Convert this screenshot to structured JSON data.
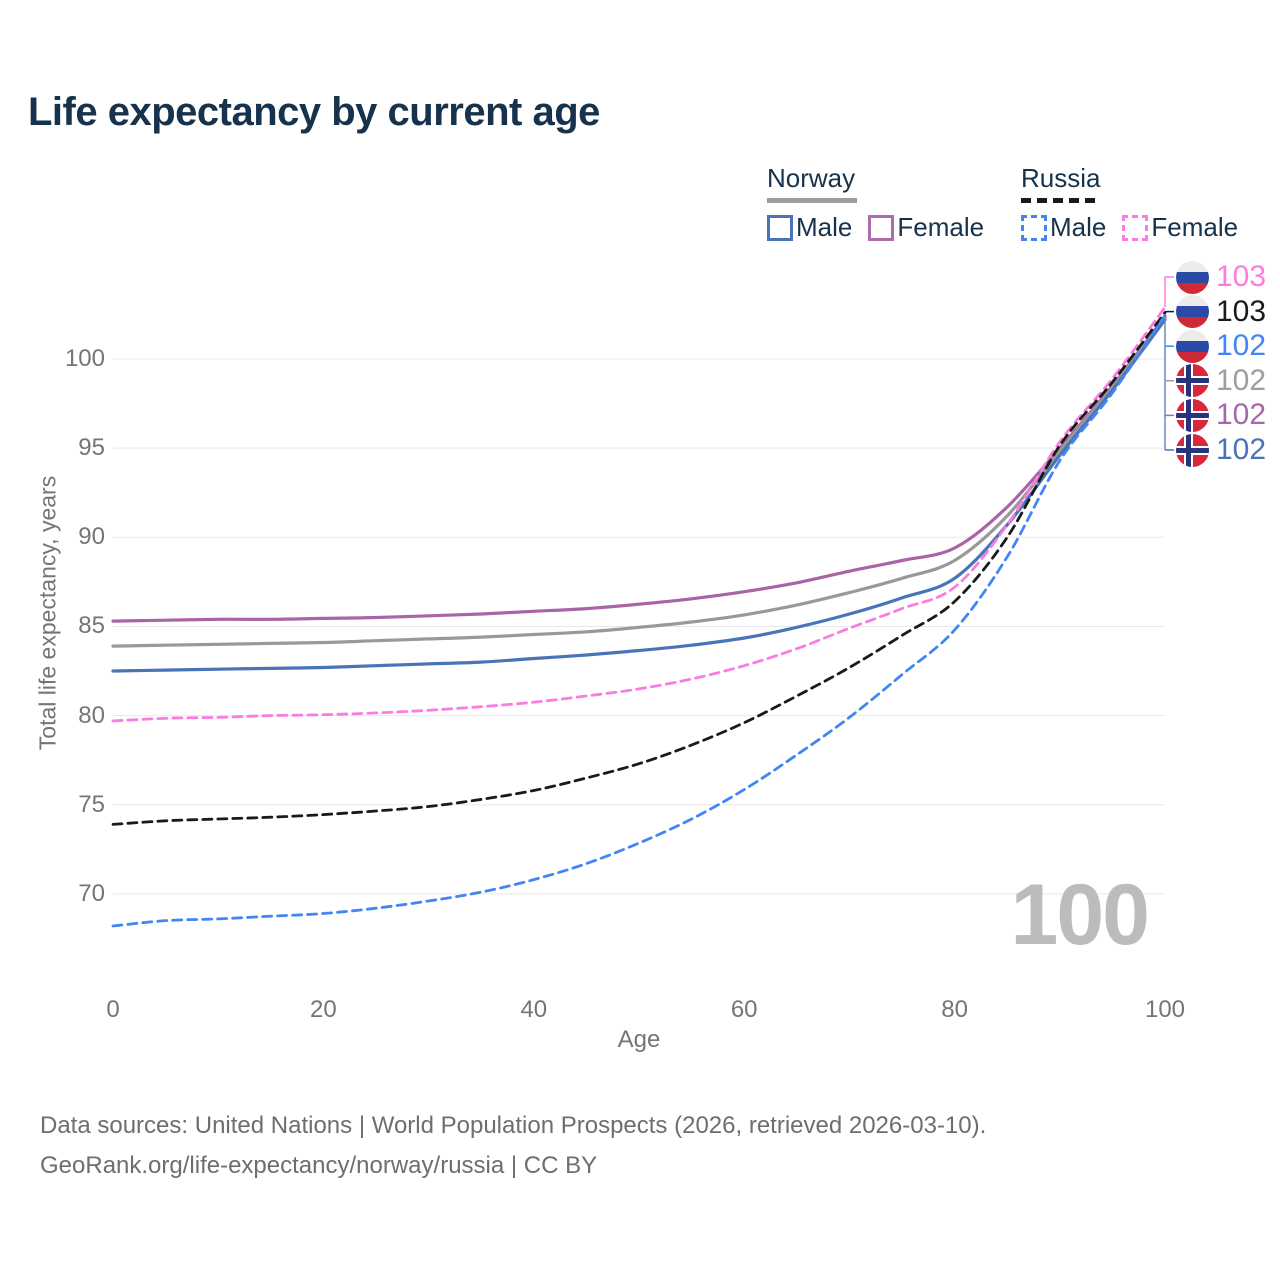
{
  "title": "Life expectancy by current age",
  "legend": {
    "norway": {
      "label": "Norway",
      "items": [
        {
          "label": "Male"
        },
        {
          "label": "Female"
        }
      ]
    },
    "russia": {
      "label": "Russia",
      "items": [
        {
          "label": "Male"
        },
        {
          "label": "Female"
        }
      ]
    }
  },
  "footer": {
    "line1": "Data sources: United Nations | World Population Prospects (2026, retrieved 2026-03-10).",
    "line2": "GeoRank.org/life-expectancy/norway/russia | CC BY"
  },
  "chart_data": {
    "type": "line",
    "title": "Life expectancy by current age",
    "xlabel": "Age",
    "ylabel": "Total life expectancy, years",
    "x": [
      0,
      5,
      10,
      15,
      20,
      25,
      30,
      35,
      40,
      45,
      50,
      55,
      60,
      65,
      70,
      75,
      80,
      85,
      90,
      95,
      100
    ],
    "xticks": [
      0,
      20,
      40,
      60,
      80,
      100
    ],
    "yticks": [
      70,
      75,
      80,
      85,
      90,
      95,
      100
    ],
    "xlim": [
      0,
      100
    ],
    "ylim": [
      66,
      104
    ],
    "grid": true,
    "legend_position": "top-right",
    "age_indicator": "100",
    "grid_color": "#e8e8e8",
    "axis_text_color": "#757575",
    "series": [
      {
        "name": "Norway Female",
        "country": "Norway",
        "sex": "Female",
        "style": "solid",
        "color": "#a963a7",
        "values": [
          85.3,
          85.35,
          85.4,
          85.4,
          85.45,
          85.5,
          85.6,
          85.7,
          85.85,
          86.0,
          86.25,
          86.55,
          86.95,
          87.45,
          88.1,
          88.7,
          89.4,
          91.7,
          95.0,
          98.5,
          102.4
        ]
      },
      {
        "name": "Norway",
        "country": "Norway",
        "sex": "Both",
        "style": "solid",
        "color": "#999999",
        "values": [
          83.9,
          83.95,
          84.0,
          84.05,
          84.1,
          84.2,
          84.3,
          84.4,
          84.55,
          84.7,
          84.95,
          85.25,
          85.65,
          86.2,
          86.9,
          87.7,
          88.7,
          91.2,
          94.85,
          98.4,
          102.3
        ]
      },
      {
        "name": "Norway Male",
        "country": "Norway",
        "sex": "Male",
        "style": "solid",
        "color": "#4a74b8",
        "values": [
          82.5,
          82.55,
          82.6,
          82.65,
          82.7,
          82.8,
          82.9,
          83.0,
          83.2,
          83.4,
          83.65,
          83.95,
          84.35,
          84.95,
          85.7,
          86.6,
          87.7,
          90.7,
          94.6,
          98.25,
          102.2
        ]
      },
      {
        "name": "Russia Female",
        "country": "Russia",
        "sex": "Female",
        "style": "dashed",
        "color": "#fb7ce1",
        "values": [
          79.7,
          79.85,
          79.9,
          80.0,
          80.05,
          80.15,
          80.3,
          80.5,
          80.75,
          81.1,
          81.5,
          82.05,
          82.8,
          83.75,
          84.9,
          86.0,
          87.2,
          90.7,
          95.35,
          98.9,
          102.9
        ]
      },
      {
        "name": "Russia",
        "country": "Russia",
        "sex": "Both",
        "style": "dashed",
        "color": "#1a1a1a",
        "values": [
          73.9,
          74.1,
          74.2,
          74.3,
          74.45,
          74.65,
          74.9,
          75.3,
          75.8,
          76.5,
          77.3,
          78.35,
          79.6,
          81.1,
          82.7,
          84.5,
          86.4,
          90.0,
          95.15,
          98.7,
          102.6
        ]
      },
      {
        "name": "Russia Male",
        "country": "Russia",
        "sex": "Male",
        "style": "dashed",
        "color": "#4285f4",
        "values": [
          68.2,
          68.5,
          68.6,
          68.75,
          68.9,
          69.2,
          69.6,
          70.1,
          70.8,
          71.7,
          72.85,
          74.2,
          75.85,
          77.8,
          79.9,
          82.3,
          84.8,
          88.9,
          94.3,
          98.1,
          102.45
        ]
      }
    ],
    "end_labels": [
      {
        "value": "103",
        "flag": "russia",
        "series": "Russia Female",
        "color": "#fd7ce2"
      },
      {
        "value": "103",
        "flag": "russia",
        "series": "Russia",
        "color": "#1a1a1a"
      },
      {
        "value": "102",
        "flag": "russia",
        "series": "Russia Male",
        "color": "#4285f4"
      },
      {
        "value": "102",
        "flag": "norway",
        "series": "Norway",
        "color": "#9e9e9e"
      },
      {
        "value": "102",
        "flag": "norway",
        "series": "Norway Female",
        "color": "#a668a8"
      },
      {
        "value": "102",
        "flag": "norway",
        "series": "Norway Male",
        "color": "#4a74b8"
      }
    ]
  },
  "colors": {
    "title": "#16324d",
    "watermark": "#bcbcbc",
    "footer_text": "#6e6e6e"
  }
}
